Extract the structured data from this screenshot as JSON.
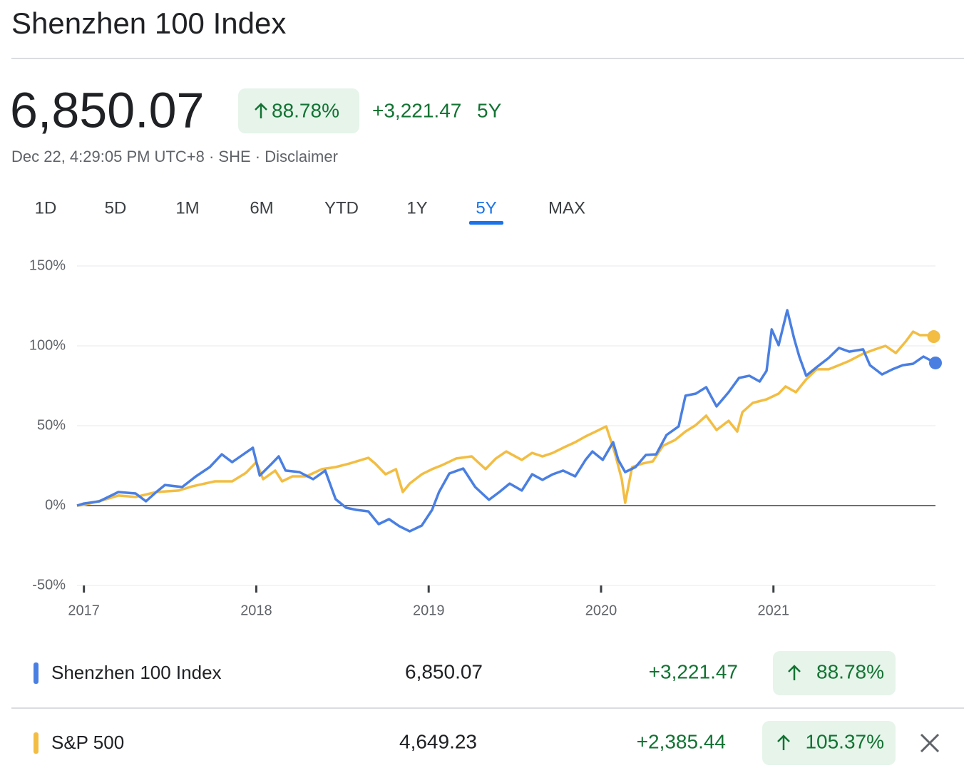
{
  "header": {
    "title": "Shenzhen 100 Index",
    "price": "6,850.07",
    "percent_change": "88.78%",
    "change": "+3,221.47",
    "period": "5Y",
    "timestamp": "Dec 22, 4:29:05 PM UTC+8",
    "exchange": "SHE",
    "disclaimer": "Disclaimer"
  },
  "tabs": [
    "1D",
    "5D",
    "1M",
    "6M",
    "YTD",
    "1Y",
    "5Y",
    "MAX"
  ],
  "selected_tab": "5Y",
  "chart_data": {
    "type": "line",
    "xlim": [
      2016.96,
      2021.94
    ],
    "xticks": [
      2017,
      2018,
      2019,
      2020,
      2021
    ],
    "ylim": [
      -50,
      150
    ],
    "yticks": [
      {
        "value": -50,
        "label": "-50%"
      },
      {
        "value": 0,
        "label": "0%"
      },
      {
        "value": 50,
        "label": "50%"
      },
      {
        "value": 100,
        "label": "100%"
      },
      {
        "value": 150,
        "label": "150%"
      }
    ],
    "grid": true,
    "series": [
      {
        "name": "Shenzhen 100 Index",
        "color": "#4a7fe2",
        "x": [
          2016.96,
          2017.0,
          2017.09,
          2017.2,
          2017.3,
          2017.36,
          2017.42,
          2017.47,
          2017.57,
          2017.65,
          2017.73,
          2017.8,
          2017.86,
          2017.92,
          2017.98,
          2018.02,
          2018.09,
          2018.13,
          2018.17,
          2018.25,
          2018.33,
          2018.4,
          2018.46,
          2018.52,
          2018.58,
          2018.65,
          2018.71,
          2018.77,
          2018.83,
          2018.89,
          2018.96,
          2019.02,
          2019.06,
          2019.12,
          2019.2,
          2019.27,
          2019.35,
          2019.41,
          2019.47,
          2019.54,
          2019.6,
          2019.66,
          2019.72,
          2019.78,
          2019.85,
          2019.91,
          2019.95,
          2020.01,
          2020.07,
          2020.1,
          2020.14,
          2020.2,
          2020.26,
          2020.32,
          2020.38,
          2020.45,
          2020.49,
          2020.55,
          2020.61,
          2020.67,
          2020.74,
          2020.8,
          2020.86,
          2020.92,
          2020.96,
          2020.99,
          2021.03,
          2021.08,
          2021.12,
          2021.15,
          2021.19,
          2021.25,
          2021.32,
          2021.38,
          2021.44,
          2021.52,
          2021.56,
          2021.63,
          2021.69,
          2021.75,
          2021.81,
          2021.87,
          2021.94
        ],
        "values": [
          0,
          1.3,
          2.7,
          8.5,
          7.6,
          2.7,
          8.5,
          12.9,
          11.6,
          18.3,
          24.1,
          32.1,
          27.2,
          31.7,
          36.2,
          18.8,
          26.3,
          30.8,
          21.9,
          21.0,
          16.5,
          21.9,
          4.0,
          -1.3,
          -2.7,
          -3.6,
          -11.6,
          -8.5,
          -12.9,
          -16.1,
          -12.5,
          -2.7,
          8.5,
          20.1,
          23.2,
          11.6,
          3.6,
          8.5,
          13.8,
          9.4,
          19.6,
          16.1,
          19.6,
          21.9,
          18.3,
          28.6,
          33.9,
          28.6,
          39.7,
          28.6,
          21.0,
          24.1,
          31.7,
          32.1,
          44.2,
          49.6,
          68.8,
          70.1,
          74.1,
          62.1,
          71.0,
          79.9,
          81.3,
          77.7,
          84.4,
          110.3,
          100.4,
          122.3,
          104.5,
          93.3,
          81.3,
          86.6,
          92.4,
          98.7,
          96.4,
          97.8,
          87.9,
          82.1,
          85.3,
          87.9,
          88.8,
          93.3,
          89.3
        ],
        "price": "6,850.07",
        "change": "+3,221.47",
        "percent_change": "88.78%"
      },
      {
        "name": "S&P 500",
        "color": "#f2bd42",
        "x": [
          2016.96,
          2017.0,
          2017.13,
          2017.2,
          2017.3,
          2017.42,
          2017.55,
          2017.63,
          2017.76,
          2017.86,
          2017.94,
          2018.0,
          2018.04,
          2018.11,
          2018.15,
          2018.21,
          2018.29,
          2018.38,
          2018.46,
          2018.54,
          2018.65,
          2018.69,
          2018.75,
          2018.81,
          2018.85,
          2018.89,
          2018.96,
          2019.02,
          2019.08,
          2019.16,
          2019.25,
          2019.33,
          2019.39,
          2019.45,
          2019.54,
          2019.6,
          2019.66,
          2019.72,
          2019.78,
          2019.85,
          2019.91,
          2019.97,
          2020.03,
          2020.08,
          2020.12,
          2020.14,
          2020.18,
          2020.24,
          2020.3,
          2020.36,
          2020.43,
          2020.49,
          2020.55,
          2020.61,
          2020.67,
          2020.74,
          2020.79,
          2020.82,
          2020.88,
          2020.96,
          2021.03,
          2021.07,
          2021.13,
          2021.19,
          2021.25,
          2021.32,
          2021.38,
          2021.44,
          2021.52,
          2021.59,
          2021.65,
          2021.71,
          2021.77,
          2021.81,
          2021.85,
          2021.9,
          2021.93
        ],
        "values": [
          0,
          0.4,
          4.0,
          6.3,
          5.4,
          8.5,
          9.4,
          12.1,
          15.2,
          15.2,
          20.5,
          27.2,
          16.5,
          21.9,
          15.2,
          18.3,
          18.3,
          22.8,
          24.1,
          26.3,
          29.9,
          26.3,
          19.6,
          22.8,
          8.5,
          13.8,
          19.6,
          22.8,
          25.4,
          29.5,
          30.8,
          22.8,
          29.5,
          33.9,
          28.6,
          33.0,
          30.8,
          33.0,
          36.2,
          39.7,
          43.3,
          46.4,
          49.6,
          33.0,
          16.5,
          1.8,
          24.1,
          26.3,
          27.7,
          37.5,
          41.1,
          46.4,
          50.4,
          56.3,
          47.3,
          53.1,
          46.4,
          58.5,
          64.3,
          66.5,
          70.1,
          74.6,
          71.0,
          79.0,
          85.3,
          85.3,
          87.9,
          90.6,
          95.1,
          97.8,
          100.0,
          95.5,
          103.1,
          108.9,
          106.7,
          106.7,
          105.8
        ],
        "price": "4,649.23",
        "change": "+2,385.44",
        "percent_change": "105.37%"
      }
    ]
  }
}
